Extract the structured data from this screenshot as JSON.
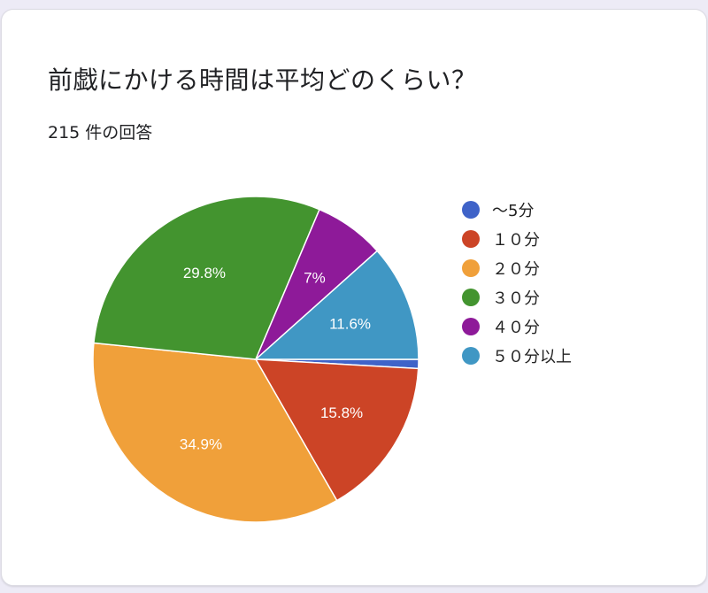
{
  "card": {
    "title": "前戯にかける時間は平均どのくらい？",
    "response_count": "215 件の回答"
  },
  "chart_data": {
    "type": "pie",
    "title": "前戯にかける時間は平均どのくらい？",
    "subtitle": "215 件の回答",
    "categories": [
      "～5分",
      "１０分",
      "２０分",
      "３０分",
      "４０分",
      "５０分以上"
    ],
    "values": [
      0.9,
      15.8,
      34.9,
      29.8,
      7,
      11.6
    ],
    "labels": [
      "",
      "15.8%",
      "34.9%",
      "29.8%",
      "7%",
      "11.6%"
    ],
    "colors": [
      "#3f63c8",
      "#cc4426",
      "#f0a03a",
      "#43942f",
      "#8e1a99",
      "#4097c4"
    ],
    "start_angle_deg": 90,
    "legend_position": "right"
  },
  "legend": [
    {
      "label": "～5分",
      "color": "#3f63c8"
    },
    {
      "label": "１０分",
      "color": "#cc4426"
    },
    {
      "label": "２０分",
      "color": "#f0a03a"
    },
    {
      "label": "３０分",
      "color": "#43942f"
    },
    {
      "label": "４０分",
      "color": "#8e1a99"
    },
    {
      "label": "５０分以上",
      "color": "#4097c4"
    }
  ]
}
